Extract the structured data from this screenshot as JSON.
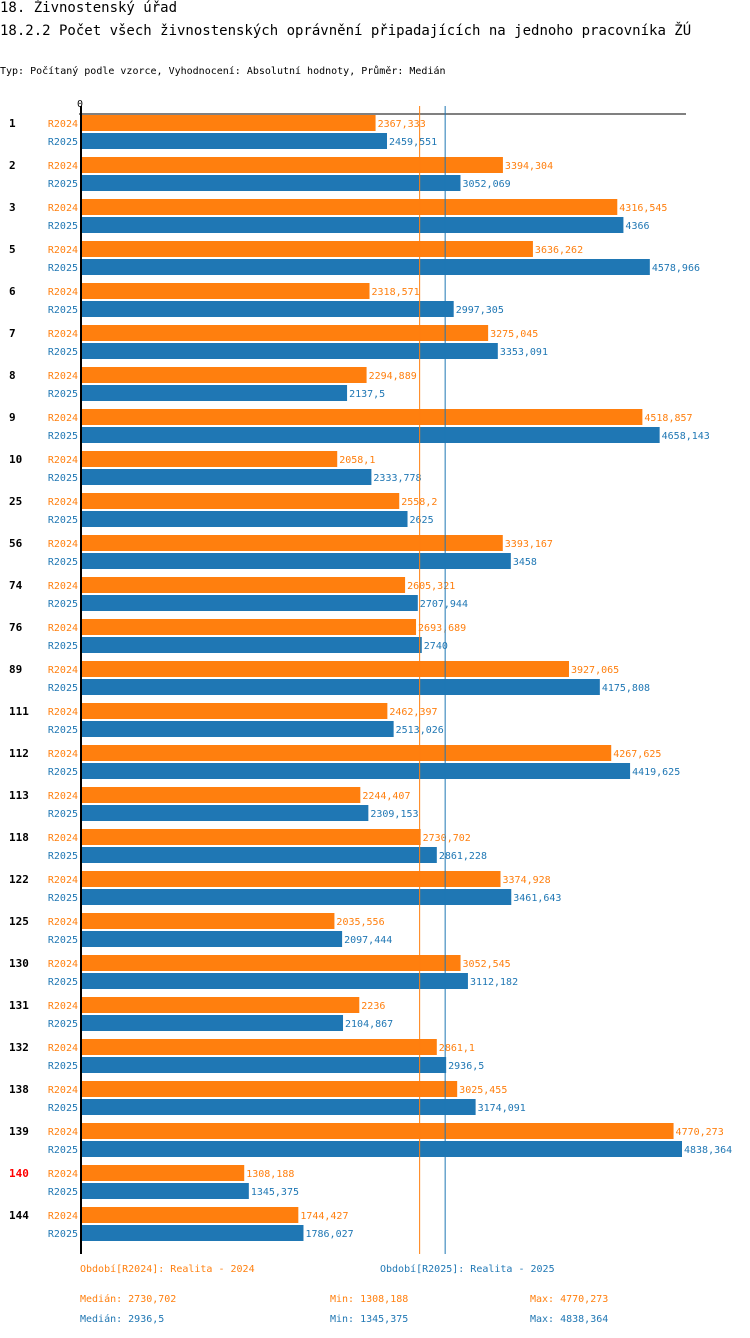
{
  "header": {
    "title": "18. Živnostenský úřad",
    "subtitle": "18.2.2 Počet všech živnostenských oprávnění připadajících na jednoho pracovníka ŽÚ",
    "info": "Typ: Počítaný podle vzorce, Vyhodnocení: Absolutní hodnoty, Průměr: Medián"
  },
  "colors": {
    "r2024": "#ff7f0e",
    "r2025": "#1f77b4",
    "highlight": "#ff0000",
    "axis": "#000000"
  },
  "chart_data": {
    "type": "bar",
    "orientation": "horizontal",
    "title": "18.2.2 Počet všech živnostenských oprávnění připadajících na jednoho pracovníka ŽÚ",
    "axis_zero_label": "0",
    "xlim": [
      0,
      4838.364
    ],
    "categories": [
      "1",
      "2",
      "3",
      "5",
      "6",
      "7",
      "8",
      "9",
      "10",
      "25",
      "56",
      "74",
      "76",
      "89",
      "111",
      "112",
      "113",
      "118",
      "122",
      "125",
      "130",
      "131",
      "132",
      "138",
      "139",
      "140",
      "144"
    ],
    "highlighted_category": "140",
    "series": [
      {
        "name": "R2024",
        "label": "Období[R2024]: Realita - 2024",
        "values": [
          2367.333,
          3394.304,
          4316.545,
          3636.262,
          2318.571,
          3275.045,
          2294.889,
          4518.857,
          2058.1,
          2558.2,
          3393.167,
          2605.321,
          2693.689,
          3927.065,
          2462.397,
          4267.625,
          2244.407,
          2730.702,
          3374.928,
          2035.556,
          3052.545,
          2236,
          2861.1,
          3025.455,
          4770.273,
          1308.188,
          1744.427
        ],
        "value_labels": [
          "2367,333",
          "3394,304",
          "4316,545",
          "3636,262",
          "2318,571",
          "3275,045",
          "2294,889",
          "4518,857",
          "2058,1",
          "2558,2",
          "3393,167",
          "2605,321",
          "2693,689",
          "3927,065",
          "2462,397",
          "4267,625",
          "2244,407",
          "2730,702",
          "3374,928",
          "2035,556",
          "3052,545",
          "2236",
          "2861,1",
          "3025,455",
          "4770,273",
          "1308,188",
          "1744,427"
        ],
        "median": 2730.702,
        "median_label": "Medián: 2730,702",
        "min_label": "Min: 1308,188",
        "max_label": "Max: 4770,273"
      },
      {
        "name": "R2025",
        "label": "Období[R2025]: Realita - 2025",
        "values": [
          2459.551,
          3052.069,
          4366,
          4578.966,
          2997.305,
          3353.091,
          2137.5,
          4658.143,
          2333.778,
          2625,
          3458,
          2707.944,
          2740,
          4175.808,
          2513.026,
          4419.625,
          2309.153,
          2861.228,
          3461.643,
          2097.444,
          3112.182,
          2104.867,
          2936.5,
          3174.091,
          4838.364,
          1345.375,
          1786.027
        ],
        "value_labels": [
          "2459,551",
          "3052,069",
          "4366",
          "4578,966",
          "2997,305",
          "3353,091",
          "2137,5",
          "4658,143",
          "2333,778",
          "2625",
          "3458",
          "2707,944",
          "2740",
          "4175,808",
          "2513,026",
          "4419,625",
          "2309,153",
          "2861,228",
          "3461,643",
          "2097,444",
          "3112,182",
          "2104,867",
          "2936,5",
          "3174,091",
          "4838,364",
          "1345,375",
          "1786,027"
        ],
        "median": 2936.5,
        "median_label": "Medián: 2936,5",
        "min_label": "Min: 1345,375",
        "max_label": "Max: 4838,364"
      }
    ]
  }
}
